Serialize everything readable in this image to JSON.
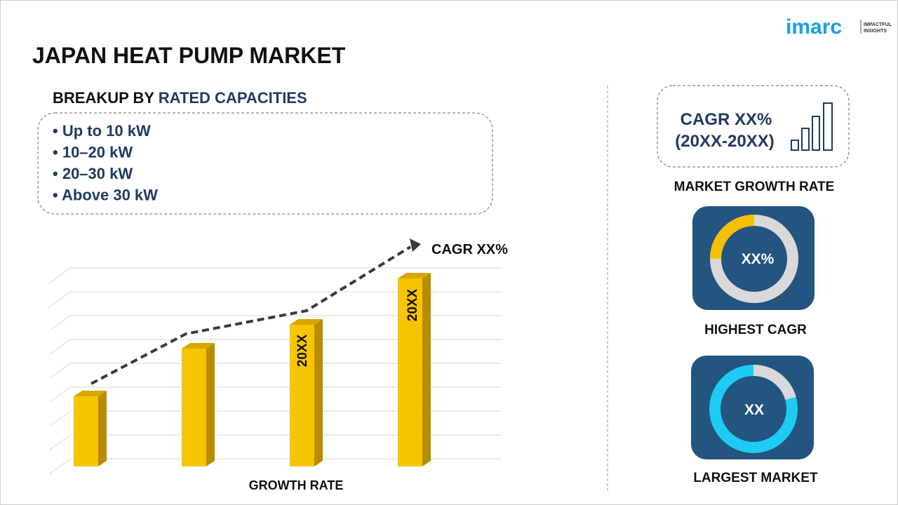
{
  "logo": {
    "name": "imarc",
    "tagline": [
      "IMPACTFUL",
      "INSIGHTS"
    ]
  },
  "title": "JAPAN HEAT PUMP MARKET",
  "breakup": {
    "prefix": "BREAKUP BY",
    "highlight": "RATED CAPACITIES",
    "items": [
      "Up to 10 kW",
      "10–20 kW",
      "20–30 kW",
      "Above 30 kW"
    ]
  },
  "chart": {
    "cagr_label": "CAGR XX%",
    "bar_labels": [
      "20XX",
      "20XX"
    ],
    "axis_label": "GROWTH RATE"
  },
  "side": {
    "growth": {
      "line1": "CAGR XX%",
      "line2": "(20XX-20XX)",
      "caption": "MARKET GROWTH RATE"
    },
    "highest": {
      "value": "XX%",
      "caption": "HIGHEST CAGR"
    },
    "largest": {
      "value": "XX",
      "caption": "LARGEST MARKET"
    }
  }
}
